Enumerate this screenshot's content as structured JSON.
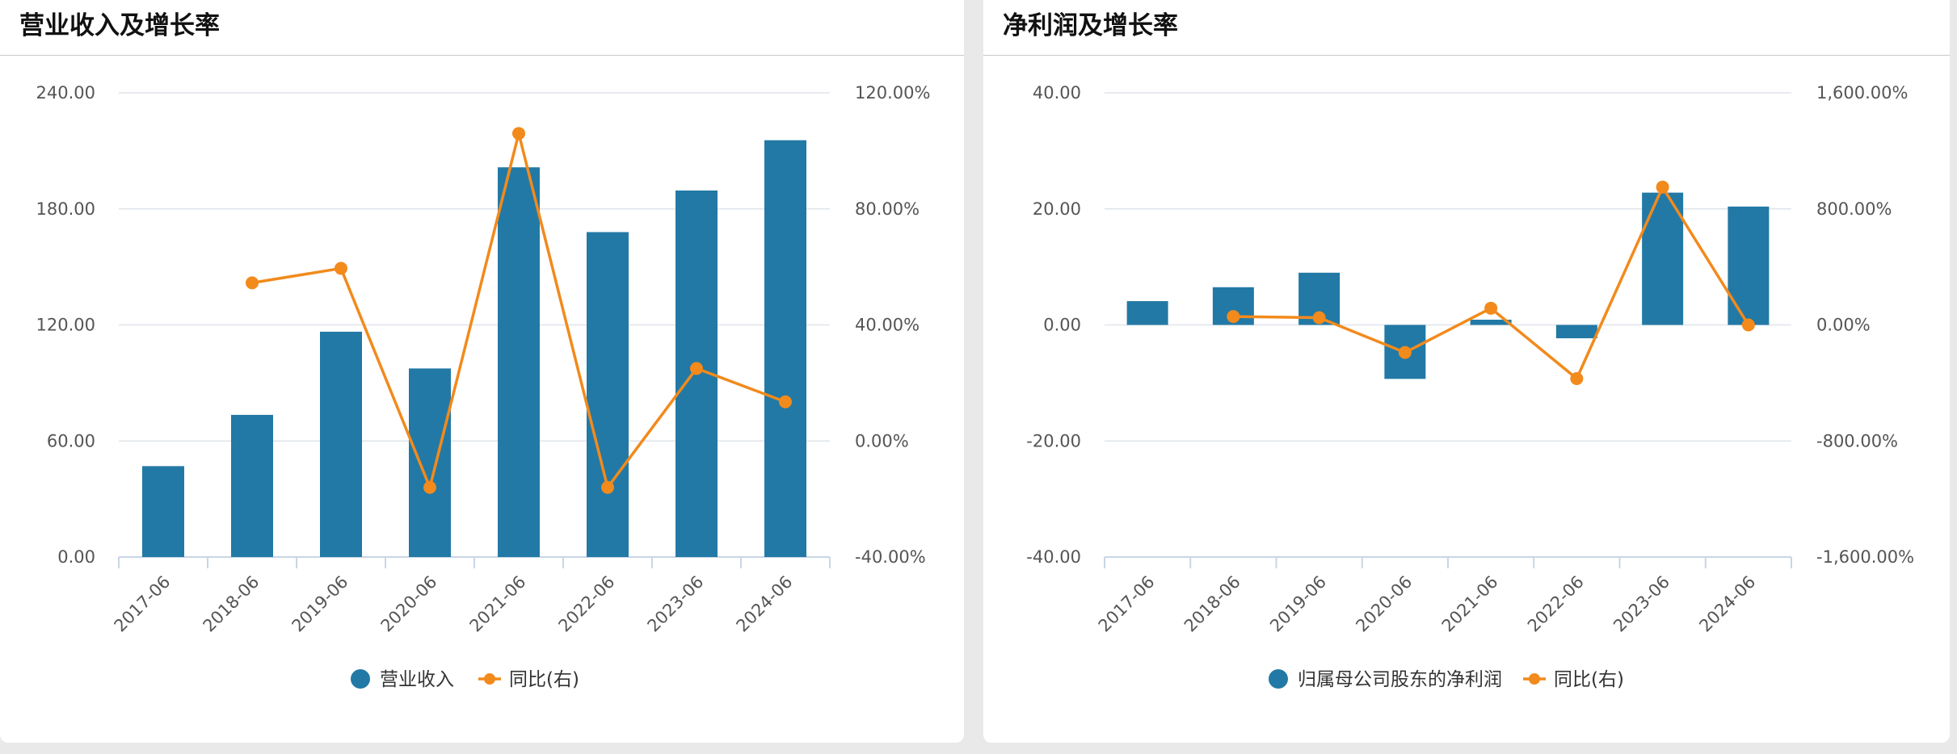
{
  "colors": {
    "bar": "#2279a5",
    "line": "#f28a1c",
    "grid": "#dfe4ea",
    "axis": "#c9d6e6",
    "text": "#555555"
  },
  "panels": [
    {
      "title": "营业收入及增长率"
    },
    {
      "title": "净利润及增长率"
    }
  ],
  "chart_data": [
    {
      "type": "bar",
      "title": "营业收入及增长率",
      "categories": [
        "2017-06",
        "2018-06",
        "2019-06",
        "2020-06",
        "2021-06",
        "2022-06",
        "2023-06",
        "2024-06"
      ],
      "y_left": {
        "ticks": [
          "240.00",
          "180.00",
          "120.00",
          "60.00",
          "0.00"
        ],
        "range": [
          0,
          240
        ]
      },
      "y_right": {
        "ticks": [
          "120.00%",
          "80.00%",
          "40.00%",
          "0.00%",
          "-40.00%"
        ],
        "range": [
          -40,
          120
        ]
      },
      "series": [
        {
          "name": "营业收入",
          "kind": "bar",
          "axis": "left",
          "values": [
            47.0,
            73.5,
            116.5,
            97.5,
            201.5,
            168.0,
            189.5,
            215.5
          ]
        },
        {
          "name": "同比(右)",
          "kind": "line",
          "axis": "right",
          "values": [
            null,
            54.5,
            59.5,
            -16.0,
            106.0,
            -16.0,
            25.0,
            13.5
          ]
        }
      ],
      "legend": {
        "position": "bottom",
        "items": [
          "营业收入",
          "同比(右)"
        ]
      }
    },
    {
      "type": "bar",
      "title": "净利润及增长率",
      "categories": [
        "2017-06",
        "2018-06",
        "2019-06",
        "2020-06",
        "2021-06",
        "2022-06",
        "2023-06",
        "2024-06"
      ],
      "y_left": {
        "ticks": [
          "40.00",
          "20.00",
          "0.00",
          "-20.00",
          "-40.00"
        ],
        "range": [
          -40,
          40
        ]
      },
      "y_right": {
        "ticks": [
          "1,600.00%",
          "800.00%",
          "0.00%",
          "-800.00%",
          "-1,600.00%"
        ],
        "range": [
          -1600,
          1600
        ]
      },
      "series": [
        {
          "name": "归属母公司股东的净利润",
          "kind": "bar",
          "axis": "left",
          "values": [
            4.1,
            6.5,
            9.0,
            -9.3,
            0.9,
            -2.3,
            22.8,
            20.4
          ]
        },
        {
          "name": "同比(右)",
          "kind": "line",
          "axis": "right",
          "values": [
            null,
            58,
            50,
            -190,
            115,
            -370,
            950,
            0
          ]
        }
      ],
      "legend": {
        "position": "bottom",
        "items": [
          "归属母公司股东的净利润",
          "同比(右)"
        ]
      }
    }
  ]
}
